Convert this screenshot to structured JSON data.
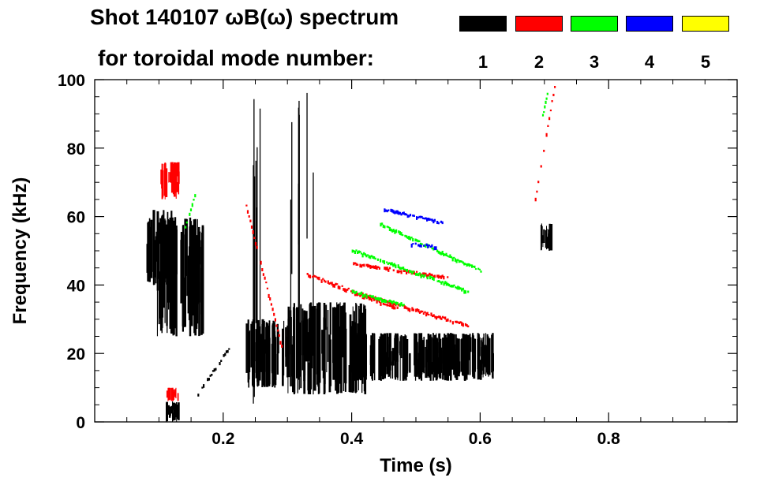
{
  "chart_data": {
    "type": "heatmap",
    "title_line1": "Shot 140107 ωB(ω) spectrum",
    "title_line2": "for toroidal mode number:",
    "xlabel": "Time (s)",
    "ylabel": "Frequency (kHz)",
    "xlim": [
      0.0,
      1.0
    ],
    "ylim": [
      0,
      100
    ],
    "x_ticks": [
      0.2,
      0.4,
      0.6,
      0.8
    ],
    "x_tick_labels": [
      "0.2",
      "0.4",
      "0.6",
      "0.8"
    ],
    "y_ticks": [
      0,
      20,
      40,
      60,
      80,
      100
    ],
    "y_tick_labels": [
      "0",
      "20",
      "40",
      "60",
      "80",
      "100"
    ],
    "legend": [
      {
        "mode": "1",
        "color": "#000000"
      },
      {
        "mode": "2",
        "color": "#ff0000"
      },
      {
        "mode": "3",
        "color": "#00ff00"
      },
      {
        "mode": "4",
        "color": "#0000ff"
      },
      {
        "mode": "5",
        "color": "#ffff00"
      }
    ],
    "features": [
      {
        "mode": 1,
        "kind": "blob",
        "t": [
          0.08,
          0.12
        ],
        "f": [
          40,
          62
        ]
      },
      {
        "mode": 1,
        "kind": "blob",
        "t": [
          0.095,
          0.17
        ],
        "f": [
          25,
          60
        ]
      },
      {
        "mode": 1,
        "kind": "blob",
        "t": [
          0.11,
          0.13
        ],
        "f": [
          0,
          6
        ]
      },
      {
        "mode": 1,
        "kind": "line",
        "t": [
          0.16,
          0.21
        ],
        "f": [
          8,
          22
        ]
      },
      {
        "mode": 1,
        "kind": "blob",
        "t": [
          0.235,
          0.3
        ],
        "f": [
          10,
          30
        ]
      },
      {
        "mode": 1,
        "kind": "blob",
        "t": [
          0.3,
          0.42
        ],
        "f": [
          8,
          35
        ]
      },
      {
        "mode": 1,
        "kind": "blob",
        "t": [
          0.4,
          0.62
        ],
        "f": [
          12,
          26
        ]
      },
      {
        "mode": 1,
        "kind": "blob",
        "t": [
          0.693,
          0.71
        ],
        "f": [
          50,
          58
        ]
      },
      {
        "mode": 1,
        "kind": "vline",
        "t": [
          0.245,
          0.258
        ],
        "f": [
          5,
          100
        ]
      },
      {
        "mode": 1,
        "kind": "vline",
        "t": [
          0.3,
          0.34
        ],
        "f": [
          5,
          100
        ]
      },
      {
        "mode": 2,
        "kind": "blob",
        "t": [
          0.1,
          0.13
        ],
        "f": [
          65,
          76
        ]
      },
      {
        "mode": 2,
        "kind": "line",
        "t": [
          0.235,
          0.29
        ],
        "f": [
          63,
          22
        ]
      },
      {
        "mode": 2,
        "kind": "line",
        "t": [
          0.33,
          0.47
        ],
        "f": [
          43,
          33
        ]
      },
      {
        "mode": 2,
        "kind": "line",
        "t": [
          0.4,
          0.58
        ],
        "f": [
          38,
          28
        ]
      },
      {
        "mode": 2,
        "kind": "line",
        "t": [
          0.4,
          0.55
        ],
        "f": [
          46,
          42
        ]
      },
      {
        "mode": 2,
        "kind": "line",
        "t": [
          0.685,
          0.715
        ],
        "f": [
          65,
          98
        ]
      },
      {
        "mode": 2,
        "kind": "blob",
        "t": [
          0.11,
          0.13
        ],
        "f": [
          6,
          10
        ]
      },
      {
        "mode": 3,
        "kind": "line",
        "t": [
          0.14,
          0.155
        ],
        "f": [
          57,
          66
        ]
      },
      {
        "mode": 3,
        "kind": "line",
        "t": [
          0.4,
          0.58
        ],
        "f": [
          50,
          38
        ]
      },
      {
        "mode": 3,
        "kind": "line",
        "t": [
          0.44,
          0.6
        ],
        "f": [
          58,
          44
        ]
      },
      {
        "mode": 3,
        "kind": "line",
        "t": [
          0.4,
          0.48
        ],
        "f": [
          38,
          34
        ]
      },
      {
        "mode": 3,
        "kind": "line",
        "t": [
          0.695,
          0.705
        ],
        "f": [
          88,
          97
        ]
      },
      {
        "mode": 4,
        "kind": "line",
        "t": [
          0.45,
          0.54
        ],
        "f": [
          62,
          58
        ]
      },
      {
        "mode": 4,
        "kind": "line",
        "t": [
          0.49,
          0.53
        ],
        "f": [
          52,
          51
        ]
      }
    ]
  }
}
